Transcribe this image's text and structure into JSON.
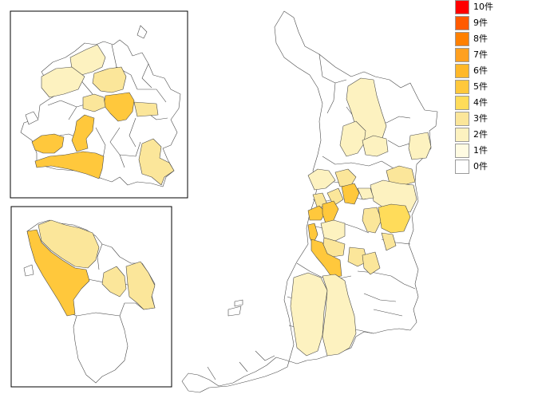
{
  "legend": {
    "items": [
      {
        "label": "10件",
        "count": 10,
        "color": "#ff0000"
      },
      {
        "label": "9件",
        "count": 9,
        "color": "#ff5a00"
      },
      {
        "label": "8件",
        "count": 8,
        "color": "#ff8000"
      },
      {
        "label": "7件",
        "count": 7,
        "color": "#ffa020"
      },
      {
        "label": "6件",
        "count": 6,
        "color": "#ffb829"
      },
      {
        "label": "5件",
        "count": 5,
        "color": "#ffc83c"
      },
      {
        "label": "4件",
        "count": 4,
        "color": "#ffdc5a"
      },
      {
        "label": "3件",
        "count": 3,
        "color": "#fbe69a"
      },
      {
        "label": "2件",
        "count": 2,
        "color": "#fdf2c0"
      },
      {
        "label": "1件",
        "count": 1,
        "color": "#fffbe2"
      },
      {
        "label": "0件",
        "count": 0,
        "color": "#ffffff"
      }
    ]
  }
}
